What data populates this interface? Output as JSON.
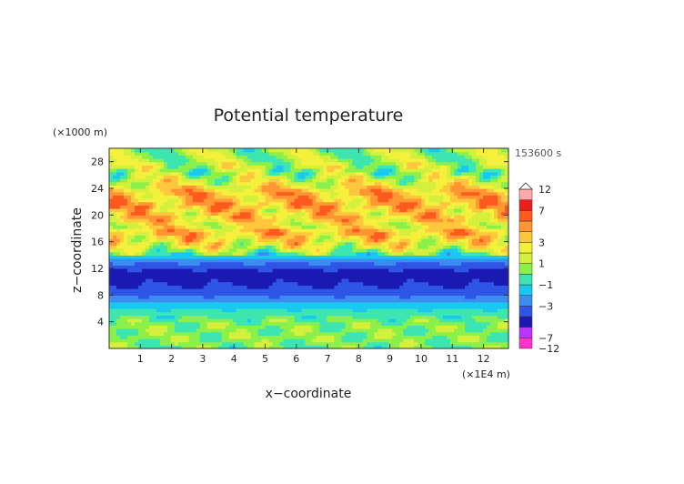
{
  "chart_data": {
    "type": "heatmap",
    "title": "Potential temperature",
    "xlabel": "x−coordinate",
    "ylabel": "z−coordinate",
    "x_unit": "(×1E4 m)",
    "y_unit": "(×1000 m)",
    "time_label": "153600 s",
    "xlim": [
      0,
      12.8
    ],
    "ylim": [
      0,
      30
    ],
    "x_ticks": [
      "1",
      "2",
      "3",
      "4",
      "5",
      "6",
      "7",
      "8",
      "9",
      "10",
      "11",
      "12"
    ],
    "y_ticks": [
      "4",
      "8",
      "12",
      "16",
      "20",
      "24",
      "28"
    ],
    "colorbar_labels": [
      "12",
      "7",
      "3",
      "1",
      "−1",
      "−3",
      "−7",
      "−12"
    ],
    "z_levels": [
      -12,
      -7,
      -5,
      -4,
      -3,
      -2,
      -1,
      0,
      1,
      2,
      3,
      4,
      5,
      7,
      9,
      12
    ],
    "colors": [
      "#ff33cc",
      "#bb33ff",
      "#1a1ab3",
      "#2e55e6",
      "#3d8cf0",
      "#19c8f0",
      "#3de6b0",
      "#8cf04a",
      "#d2f03c",
      "#f5f03c",
      "#ffc83c",
      "#ff9632",
      "#ff5a1e",
      "#eb1e1e",
      "#ffaaaa"
    ],
    "band_profile": [
      {
        "z": 0.0,
        "v": 0.2
      },
      {
        "z": 2.0,
        "v": 0.5
      },
      {
        "z": 4.0,
        "v": 0.3
      },
      {
        "z": 6.0,
        "v": -1.0
      },
      {
        "z": 7.5,
        "v": -2.5
      },
      {
        "z": 8.5,
        "v": -3.6
      },
      {
        "z": 10.0,
        "v": -4.2
      },
      {
        "z": 11.5,
        "v": -4.4
      },
      {
        "z": 12.5,
        "v": -3.5
      },
      {
        "z": 13.5,
        "v": -2.0
      },
      {
        "z": 14.5,
        "v": 0.6
      },
      {
        "z": 15.5,
        "v": 2.2
      },
      {
        "z": 16.5,
        "v": 2.8
      },
      {
        "z": 17.5,
        "v": 3.8
      },
      {
        "z": 18.5,
        "v": 2.0
      },
      {
        "z": 19.5,
        "v": 3.5
      },
      {
        "z": 20.5,
        "v": 3.0
      },
      {
        "z": 21.5,
        "v": 4.0
      },
      {
        "z": 22.5,
        "v": 3.5
      },
      {
        "z": 23.5,
        "v": 3.8
      },
      {
        "z": 24.5,
        "v": 2.2
      },
      {
        "z": 25.5,
        "v": 1.6
      },
      {
        "z": 26.5,
        "v": 0.5
      },
      {
        "z": 27.5,
        "v": 1.4
      },
      {
        "z": 28.5,
        "v": 0.8
      },
      {
        "z": 30.0,
        "v": 0.8
      }
    ]
  }
}
